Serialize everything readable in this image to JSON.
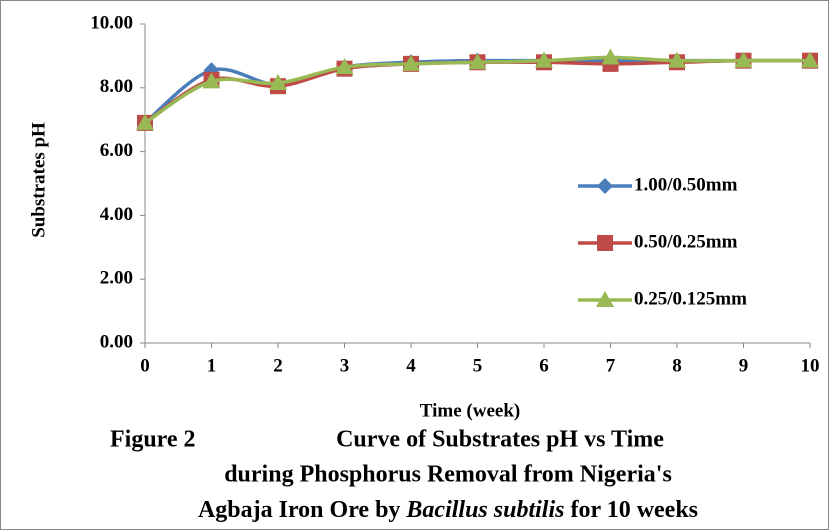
{
  "chart_data": {
    "type": "line",
    "x_label": "Time (week)",
    "y_label": "Substrates pH",
    "x": [
      0,
      1,
      2,
      3,
      4,
      5,
      6,
      7,
      8,
      9,
      10
    ],
    "xlim": [
      0,
      10
    ],
    "xticks": [
      0,
      1,
      2,
      3,
      4,
      5,
      6,
      7,
      8,
      9,
      10
    ],
    "ylim": [
      0,
      10
    ],
    "yticks": [
      {
        "value": 0,
        "label": "0.00"
      },
      {
        "value": 2,
        "label": "2.00"
      },
      {
        "value": 4,
        "label": "4.00"
      },
      {
        "value": 6,
        "label": "6.00"
      },
      {
        "value": 8,
        "label": "8.00"
      },
      {
        "value": 10,
        "label": "10.00"
      }
    ],
    "legend": "right",
    "series": [
      {
        "name": "1.00/0.50mm",
        "color": "#4a7ebb",
        "marker": "diamond",
        "values": [
          6.9,
          8.55,
          8.1,
          8.65,
          8.8,
          8.85,
          8.85,
          8.85,
          8.85,
          8.85,
          8.85
        ]
      },
      {
        "name": "0.50/0.25mm",
        "color": "#be4b48",
        "marker": "square",
        "values": [
          6.9,
          8.25,
          8.05,
          8.6,
          8.75,
          8.8,
          8.8,
          8.75,
          8.8,
          8.85,
          8.85
        ]
      },
      {
        "name": "0.25/0.125mm",
        "color": "#98b954",
        "marker": "triangle",
        "values": [
          6.9,
          8.2,
          8.15,
          8.65,
          8.75,
          8.8,
          8.85,
          8.95,
          8.85,
          8.85,
          8.85
        ]
      }
    ],
    "caption": {
      "figure": "Figure 2",
      "line1": "Curve of Substrates pH vs Time",
      "line2": "during Phosphorus Removal from Nigeria's",
      "line3a": "Agbaja Iron Ore by ",
      "line3b": "Bacillus subtilis",
      "line3c": " for 10 weeks"
    }
  }
}
